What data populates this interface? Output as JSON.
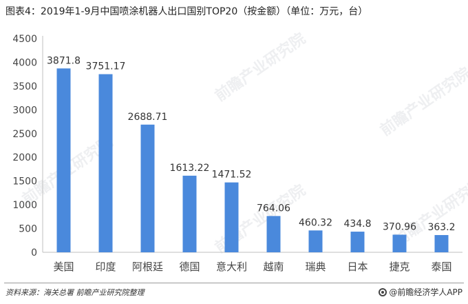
{
  "title": "图表4：2019年1-9月中国喷涂机器人出口国别TOP20（按金额）（单位：万元，台）",
  "footer": {
    "source": "资料来源：海关总署 前瞻产业研究院整理",
    "brand": "@前瞻经济学人APP"
  },
  "watermark": {
    "text": "前瞻产业研究院"
  },
  "colors": {
    "bar": "#4a89dc",
    "axis": "#bfbfbf",
    "tick_text": "#444444",
    "label_text": "#333333"
  },
  "chart_data": {
    "type": "bar",
    "categories": [
      "美国",
      "印度",
      "阿根廷",
      "德国",
      "意大利",
      "越南",
      "瑞典",
      "日本",
      "捷克",
      "泰国"
    ],
    "values": [
      3871.8,
      3751.17,
      2688.71,
      1613.22,
      1471.52,
      764.06,
      460.32,
      434.8,
      370.96,
      363.2
    ],
    "value_labels": [
      "3871.8",
      "3751.17",
      "2688.71",
      "1613.22",
      "1471.52",
      "764.06",
      "460.32",
      "434.8",
      "370.96",
      "363.2"
    ],
    "yticks": [
      "0",
      "500",
      "1000",
      "1500",
      "2000",
      "2500",
      "3000",
      "3500",
      "4000",
      "4500"
    ],
    "ylim": [
      0,
      4500
    ],
    "grid": false,
    "legend": "none"
  }
}
